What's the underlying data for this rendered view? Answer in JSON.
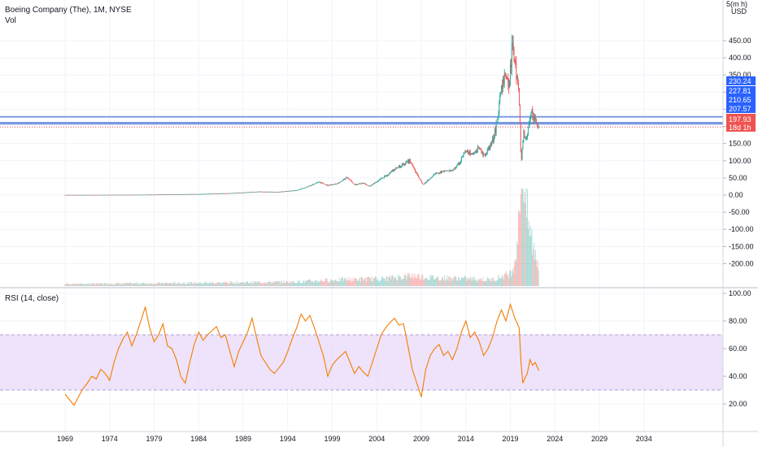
{
  "header": {
    "title": "Boeing Company (The), 1M, NYSE",
    "vol_label": "Vol",
    "rsi_label": "RSI (14, close)",
    "scale_mode": "5(m h)",
    "currency": "USD"
  },
  "colors": {
    "up": "#26a69a",
    "down": "#ef5350",
    "rsi_line": "#f57c00",
    "rsi_band": "#e8d9f8",
    "hline": "#6b8cde",
    "price_tag": "#ef5350",
    "level_tag": "#2962ff",
    "grid": "#f0f3fa"
  },
  "chart_data": [
    {
      "type": "candlestick",
      "title": "Boeing Company (The), 1M, NYSE",
      "x_range": [
        1962,
        2038
      ],
      "y_range": [
        -230,
        460
      ],
      "y_ticks": [
        450,
        400,
        350,
        300,
        250,
        200,
        150,
        100,
        50,
        0,
        -50,
        -100,
        -150,
        -200
      ],
      "y_tick_labels": [
        "450.00",
        "400.00",
        "350.00",
        "300.00",
        "250.00",
        "200.00",
        "150.00",
        "100.00",
        "50.00",
        "0.00",
        "-50.00",
        "-100.00",
        "-150.00",
        "-200.00"
      ],
      "price_path": [
        [
          1969,
          0.5
        ],
        [
          1972,
          0.6
        ],
        [
          1975,
          0.8
        ],
        [
          1978,
          1.2
        ],
        [
          1981,
          2.0
        ],
        [
          1984,
          3.0
        ],
        [
          1987,
          5.0
        ],
        [
          1989,
          7.0
        ],
        [
          1990,
          9.0
        ],
        [
          1991,
          10.0
        ],
        [
          1993,
          9.0
        ],
        [
          1995,
          14.0
        ],
        [
          1996,
          22.0
        ],
        [
          1997.5,
          38.0
        ],
        [
          1998.5,
          28.0
        ],
        [
          1999.5,
          33.0
        ],
        [
          2000,
          40.0
        ],
        [
          2000.7,
          52.0
        ],
        [
          2001.5,
          30.0
        ],
        [
          2002.5,
          35.0
        ],
        [
          2003.2,
          25.0
        ],
        [
          2004,
          40.0
        ],
        [
          2005,
          55.0
        ],
        [
          2006,
          75.0
        ],
        [
          2007.7,
          100.0
        ],
        [
          2008.5,
          60.0
        ],
        [
          2009.2,
          30.0
        ],
        [
          2009.8,
          45.0
        ],
        [
          2010.5,
          60.0
        ],
        [
          2011.5,
          70.0
        ],
        [
          2012.5,
          70.0
        ],
        [
          2013.3,
          95.0
        ],
        [
          2014,
          130.0
        ],
        [
          2014.7,
          120.0
        ],
        [
          2015.5,
          140.0
        ],
        [
          2016,
          115.0
        ],
        [
          2016.5,
          130.0
        ],
        [
          2017,
          160.0
        ],
        [
          2017.5,
          210.0
        ],
        [
          2018,
          320.0
        ],
        [
          2018.5,
          350.0
        ],
        [
          2018.9,
          330.0
        ],
        [
          2019.2,
          430.0
        ],
        [
          2019.5,
          380.0
        ],
        [
          2019.9,
          330.0
        ],
        [
          2020.1,
          200.0
        ],
        [
          2020.2,
          95.0
        ],
        [
          2020.5,
          180.0
        ],
        [
          2020.8,
          155.0
        ],
        [
          2021.1,
          220.0
        ],
        [
          2021.4,
          250.0
        ],
        [
          2021.7,
          215.0
        ],
        [
          2022.0,
          205.0
        ],
        [
          2022.2,
          197.93
        ]
      ],
      "last_price": 197.93,
      "last_price_label": "197.93",
      "countdown_label": "18d 1h",
      "levels": [
        {
          "value": 230.24,
          "label": "230.24",
          "line": false
        },
        {
          "value": 227.81,
          "label": "227.81",
          "line": true
        },
        {
          "value": 210.65,
          "label": "210.65",
          "line": true
        },
        {
          "value": 207.57,
          "label": "207.57",
          "line": true
        }
      ]
    },
    {
      "type": "bar",
      "title": "Vol",
      "volume_path": [
        [
          1969,
          1
        ],
        [
          1985,
          1.5
        ],
        [
          1995,
          2
        ],
        [
          2000,
          3
        ],
        [
          2005,
          3.5
        ],
        [
          2008,
          5
        ],
        [
          2010,
          4
        ],
        [
          2014,
          3.5
        ],
        [
          2017,
          3
        ],
        [
          2019,
          6
        ],
        [
          2019.5,
          12
        ],
        [
          2020.0,
          30
        ],
        [
          2020.3,
          80
        ],
        [
          2020.6,
          45
        ],
        [
          2021,
          30
        ],
        [
          2021.5,
          20
        ],
        [
          2022.2,
          10
        ]
      ]
    },
    {
      "type": "line",
      "title": "RSI (14, close)",
      "y_range": [
        10,
        100
      ],
      "y_ticks": [
        100,
        80,
        60,
        40,
        20
      ],
      "y_tick_labels": [
        "100.00",
        "80.00",
        "60.00",
        "40.00",
        "20.00"
      ],
      "band": [
        30,
        70
      ],
      "x_ticks": [
        1969,
        1974,
        1979,
        1984,
        1989,
        1994,
        1999,
        2004,
        2009,
        2014,
        2019,
        2024,
        2029,
        2034
      ],
      "x_tick_labels": [
        "1969",
        "1974",
        "1979",
        "1984",
        "1989",
        "1994",
        "1999",
        "2004",
        "2009",
        "2014",
        "2019",
        "2024",
        "2029",
        "2034"
      ],
      "series": [
        {
          "points": [
            [
              1969.0,
              27
            ],
            [
              1969.5,
              23
            ],
            [
              1970.0,
              19
            ],
            [
              1970.5,
              25
            ],
            [
              1971.0,
              31
            ],
            [
              1971.5,
              35
            ],
            [
              1972.0,
              40
            ],
            [
              1972.5,
              38
            ],
            [
              1973.0,
              45
            ],
            [
              1973.5,
              42
            ],
            [
              1974.0,
              37
            ],
            [
              1974.5,
              50
            ],
            [
              1975.0,
              60
            ],
            [
              1975.5,
              67
            ],
            [
              1976.0,
              72
            ],
            [
              1976.5,
              62
            ],
            [
              1977.0,
              70
            ],
            [
              1977.5,
              80
            ],
            [
              1978.0,
              90
            ],
            [
              1978.5,
              75
            ],
            [
              1979.0,
              65
            ],
            [
              1979.5,
              70
            ],
            [
              1980.0,
              78
            ],
            [
              1980.5,
              62
            ],
            [
              1981.0,
              60
            ],
            [
              1981.5,
              52
            ],
            [
              1982.0,
              40
            ],
            [
              1982.5,
              35
            ],
            [
              1983.0,
              50
            ],
            [
              1983.5,
              63
            ],
            [
              1984.0,
              72
            ],
            [
              1984.5,
              66
            ],
            [
              1985.0,
              70
            ],
            [
              1985.5,
              73
            ],
            [
              1986.0,
              76
            ],
            [
              1986.5,
              68
            ],
            [
              1987.0,
              70
            ],
            [
              1987.5,
              58
            ],
            [
              1988.0,
              47
            ],
            [
              1988.5,
              58
            ],
            [
              1989.0,
              65
            ],
            [
              1989.5,
              72
            ],
            [
              1990.0,
              82
            ],
            [
              1990.5,
              68
            ],
            [
              1991.0,
              55
            ],
            [
              1991.5,
              50
            ],
            [
              1992.0,
              45
            ],
            [
              1992.5,
              42
            ],
            [
              1993.0,
              46
            ],
            [
              1993.5,
              50
            ],
            [
              1994.0,
              58
            ],
            [
              1994.5,
              67
            ],
            [
              1995.0,
              75
            ],
            [
              1995.5,
              85
            ],
            [
              1996.0,
              80
            ],
            [
              1996.5,
              84
            ],
            [
              1997.0,
              75
            ],
            [
              1997.5,
              65
            ],
            [
              1998.0,
              55
            ],
            [
              1998.5,
              40
            ],
            [
              1999.0,
              48
            ],
            [
              1999.5,
              52
            ],
            [
              2000.0,
              55
            ],
            [
              2000.5,
              58
            ],
            [
              2001.0,
              50
            ],
            [
              2001.5,
              42
            ],
            [
              2002.0,
              47
            ],
            [
              2002.5,
              43
            ],
            [
              2003.0,
              40
            ],
            [
              2003.5,
              50
            ],
            [
              2004.0,
              60
            ],
            [
              2004.5,
              70
            ],
            [
              2005.0,
              75
            ],
            [
              2005.5,
              79
            ],
            [
              2006.0,
              82
            ],
            [
              2006.5,
              77
            ],
            [
              2007.0,
              78
            ],
            [
              2007.5,
              62
            ],
            [
              2008.0,
              45
            ],
            [
              2008.5,
              35
            ],
            [
              2009.0,
              25
            ],
            [
              2009.5,
              45
            ],
            [
              2010.0,
              55
            ],
            [
              2010.5,
              60
            ],
            [
              2011.0,
              63
            ],
            [
              2011.5,
              55
            ],
            [
              2012.0,
              58
            ],
            [
              2012.5,
              52
            ],
            [
              2013.0,
              60
            ],
            [
              2013.5,
              72
            ],
            [
              2014.0,
              80
            ],
            [
              2014.5,
              68
            ],
            [
              2015.0,
              72
            ],
            [
              2015.5,
              65
            ],
            [
              2016.0,
              55
            ],
            [
              2016.5,
              60
            ],
            [
              2017.0,
              68
            ],
            [
              2017.5,
              80
            ],
            [
              2018.0,
              88
            ],
            [
              2018.5,
              80
            ],
            [
              2019.0,
              92
            ],
            [
              2019.5,
              82
            ],
            [
              2020.0,
              75
            ],
            [
              2020.2,
              50
            ],
            [
              2020.4,
              35
            ],
            [
              2020.6,
              38
            ],
            [
              2020.9,
              42
            ],
            [
              2021.2,
              52
            ],
            [
              2021.5,
              48
            ],
            [
              2021.8,
              50
            ],
            [
              2022.2,
              44
            ]
          ]
        }
      ]
    }
  ]
}
